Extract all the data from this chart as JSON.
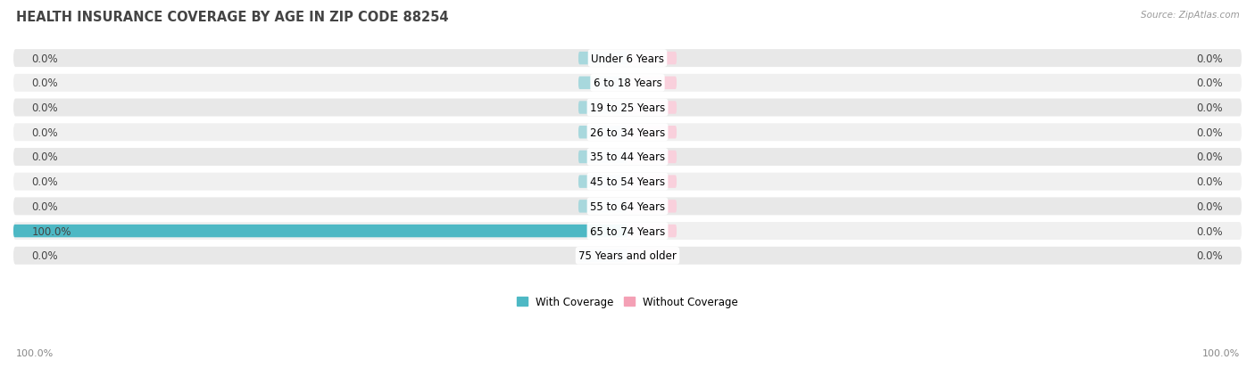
{
  "title": "HEALTH INSURANCE COVERAGE BY AGE IN ZIP CODE 88254",
  "source": "Source: ZipAtlas.com",
  "categories": [
    "Under 6 Years",
    "6 to 18 Years",
    "19 to 25 Years",
    "26 to 34 Years",
    "35 to 44 Years",
    "45 to 54 Years",
    "55 to 64 Years",
    "65 to 74 Years",
    "75 Years and older"
  ],
  "with_coverage": [
    0.0,
    0.0,
    0.0,
    0.0,
    0.0,
    0.0,
    0.0,
    100.0,
    0.0
  ],
  "without_coverage": [
    0.0,
    0.0,
    0.0,
    0.0,
    0.0,
    0.0,
    0.0,
    0.0,
    0.0
  ],
  "color_with": "#4db8c4",
  "color_with_dim": "#a8d8dd",
  "color_without": "#f4a0b5",
  "color_without_dim": "#f9d0dc",
  "pill_color": "#e8e8e8",
  "pill_color_alt": "#f0f0f0",
  "title_fontsize": 10.5,
  "label_fontsize": 8.5,
  "cat_fontsize": 8.5,
  "tick_fontsize": 8,
  "xlim": [
    -100,
    100
  ],
  "bar_height": 0.52,
  "min_bar_width": 8,
  "legend_with": "With Coverage",
  "legend_without": "Without Coverage"
}
